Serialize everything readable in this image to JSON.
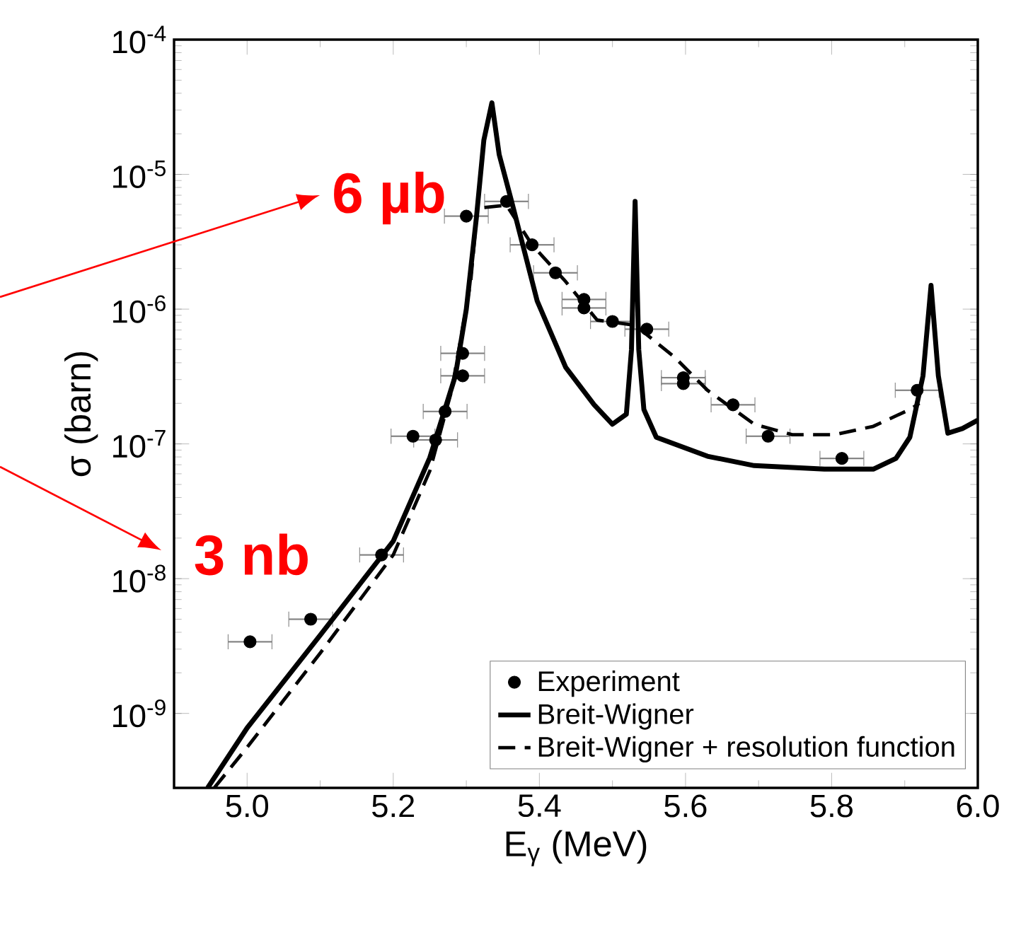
{
  "chart_data": {
    "type": "scatter",
    "xlabel": "E$_{γ}$ (MeV)",
    "ylabel": "σ (barn)",
    "annotations": [
      "6 µb",
      "3 nb"
    ],
    "log": "y",
    "grid": false,
    "legend": "bottom right",
    "xlim": [
      4.9,
      6.0
    ],
    "xticks": [
      {
        "value": 5.0,
        "label": "5.0"
      },
      {
        "value": 5.2,
        "label": "5.2"
      },
      {
        "value": 5.4,
        "label": "5.4"
      },
      {
        "value": 5.6,
        "label": "5.6"
      },
      {
        "value": 5.8,
        "label": "5.8"
      },
      {
        "value": 6.0,
        "label": "6.0"
      }
    ],
    "ylim": [
      2.8e-10,
      0.0001
    ],
    "yticks": [
      {
        "value": 1e-09,
        "label": "10$^{-9}$"
      },
      {
        "value": 1e-08,
        "label": "10$^{-8}$"
      },
      {
        "value": 1e-07,
        "label": "10$^{-7}$"
      },
      {
        "value": 1e-06,
        "label": "10$^{-6}$"
      },
      {
        "value": 1e-05,
        "label": "10$^{-5}$"
      },
      {
        "value": 0.0001,
        "label": "10$^{-4}$"
      }
    ],
    "series": [
      {
        "name": "Experiment",
        "marker": "circle",
        "color": "#000000",
        "x": [
          5.004,
          5.087,
          5.184,
          5.227,
          5.258,
          5.271,
          5.295,
          5.295,
          5.3,
          5.355,
          5.39,
          5.422,
          5.461,
          5.461,
          5.5,
          5.547,
          5.597,
          5.597,
          5.665,
          5.713,
          5.814,
          5.917
        ],
        "values": [
          3.4e-09,
          5e-09,
          1.5e-08,
          1.14e-07,
          1.07e-07,
          1.74e-07,
          3.2e-07,
          4.7e-07,
          4.9e-06,
          6.3e-06,
          3e-06,
          1.86e-06,
          1.18e-06,
          1.02e-06,
          8.1e-07,
          7.1e-07,
          3.1e-07,
          2.8e-07,
          1.95e-07,
          1.14e-07,
          7.8e-08,
          2.5e-07
        ],
        "xerrors": [
          0.03,
          0.03,
          0.03,
          0.03,
          0.03,
          0.03,
          0.03,
          0.03,
          0.03,
          0.03,
          0.03,
          0.03,
          0.03,
          0.03,
          0.03,
          0.03,
          0.03,
          0.03,
          0.03,
          0.03,
          0.03,
          0.03
        ]
      },
      {
        "name": "Breit-Wigner",
        "type": "line",
        "marker": "none",
        "color": "#000000",
        "line_style": "solid",
        "x": [
          4.946,
          5.0,
          5.1,
          5.2,
          5.25,
          5.285,
          5.3,
          5.314,
          5.324,
          5.335,
          5.345,
          5.362,
          5.397,
          5.436,
          5.475,
          5.5,
          5.519,
          5.526,
          5.531,
          5.536,
          5.543,
          5.56,
          5.63,
          5.694,
          5.79,
          5.857,
          5.888,
          5.907,
          5.925,
          5.936,
          5.946,
          5.959,
          5.979,
          6.0
        ],
        "values": [
          2.8e-10,
          7.8e-10,
          3.8e-09,
          1.9e-08,
          7.9e-08,
          3.2e-07,
          1e-06,
          4.9e-06,
          1.8e-05,
          3.4e-05,
          1.4e-05,
          6.3e-06,
          1.15e-06,
          3.7e-07,
          1.95e-07,
          1.4e-07,
          1.66e-07,
          5e-07,
          6.3e-06,
          5e-07,
          1.8e-07,
          1.12e-07,
          8.1e-08,
          6.9e-08,
          6.5e-08,
          6.5e-08,
          7.8e-08,
          1.12e-07,
          3.2e-07,
          1.5e-06,
          3.2e-07,
          1.2e-07,
          1.3e-07,
          1.5e-07
        ]
      },
      {
        "name": "Breit-Wigner + resolution function",
        "type": "line",
        "marker": "none",
        "color": "#000000",
        "line_style": "dashed",
        "x": [
          4.955,
          5.0,
          5.1,
          5.2,
          5.25,
          5.28,
          5.306,
          5.315,
          5.355,
          5.39,
          5.436,
          5.479,
          5.531,
          5.585,
          5.63,
          5.694,
          5.746,
          5.804,
          5.857,
          5.907,
          5.92
        ],
        "values": [
          2.8e-10,
          5.6e-10,
          2.8e-09,
          1.5e-08,
          6.3e-08,
          2.5e-07,
          1.6e-06,
          5.6e-06,
          5.9e-06,
          3e-06,
          1.6e-06,
          8.3e-07,
          7.6e-07,
          4.4e-07,
          2.5e-07,
          1.4e-07,
          1.17e-07,
          1.17e-07,
          1.35e-07,
          1.8e-07,
          2e-07
        ]
      }
    ]
  }
}
